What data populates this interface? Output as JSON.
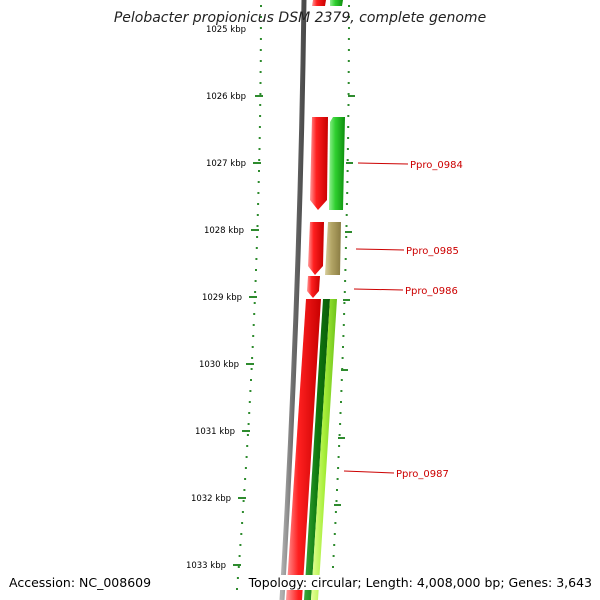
{
  "title": "Pelobacter propionicus DSM 2379, complete genome",
  "footer": {
    "accession": "Accession: NC_008609",
    "summary": "Topology: circular; Length: 4,008,000 bp; Genes: 3,643"
  },
  "colors": {
    "backbone": "#7a7a7a",
    "forward_gene": "#ff1a1a",
    "reverse_gene_green": "#33cc33",
    "reverse_gene_tan": "#b5a76a",
    "tick": "#2e8b2e",
    "gene_label": "#cc0000"
  },
  "scale_labels": [
    "1025 kbp",
    "1026 kbp",
    "1027 kbp",
    "1028 kbp",
    "1029 kbp",
    "1030 kbp",
    "1031 kbp",
    "1032 kbp",
    "1033 kbp"
  ],
  "gene_labels": [
    "Ppro_0984",
    "Ppro_0985",
    "Ppro_0986",
    "Ppro_0987"
  ]
}
